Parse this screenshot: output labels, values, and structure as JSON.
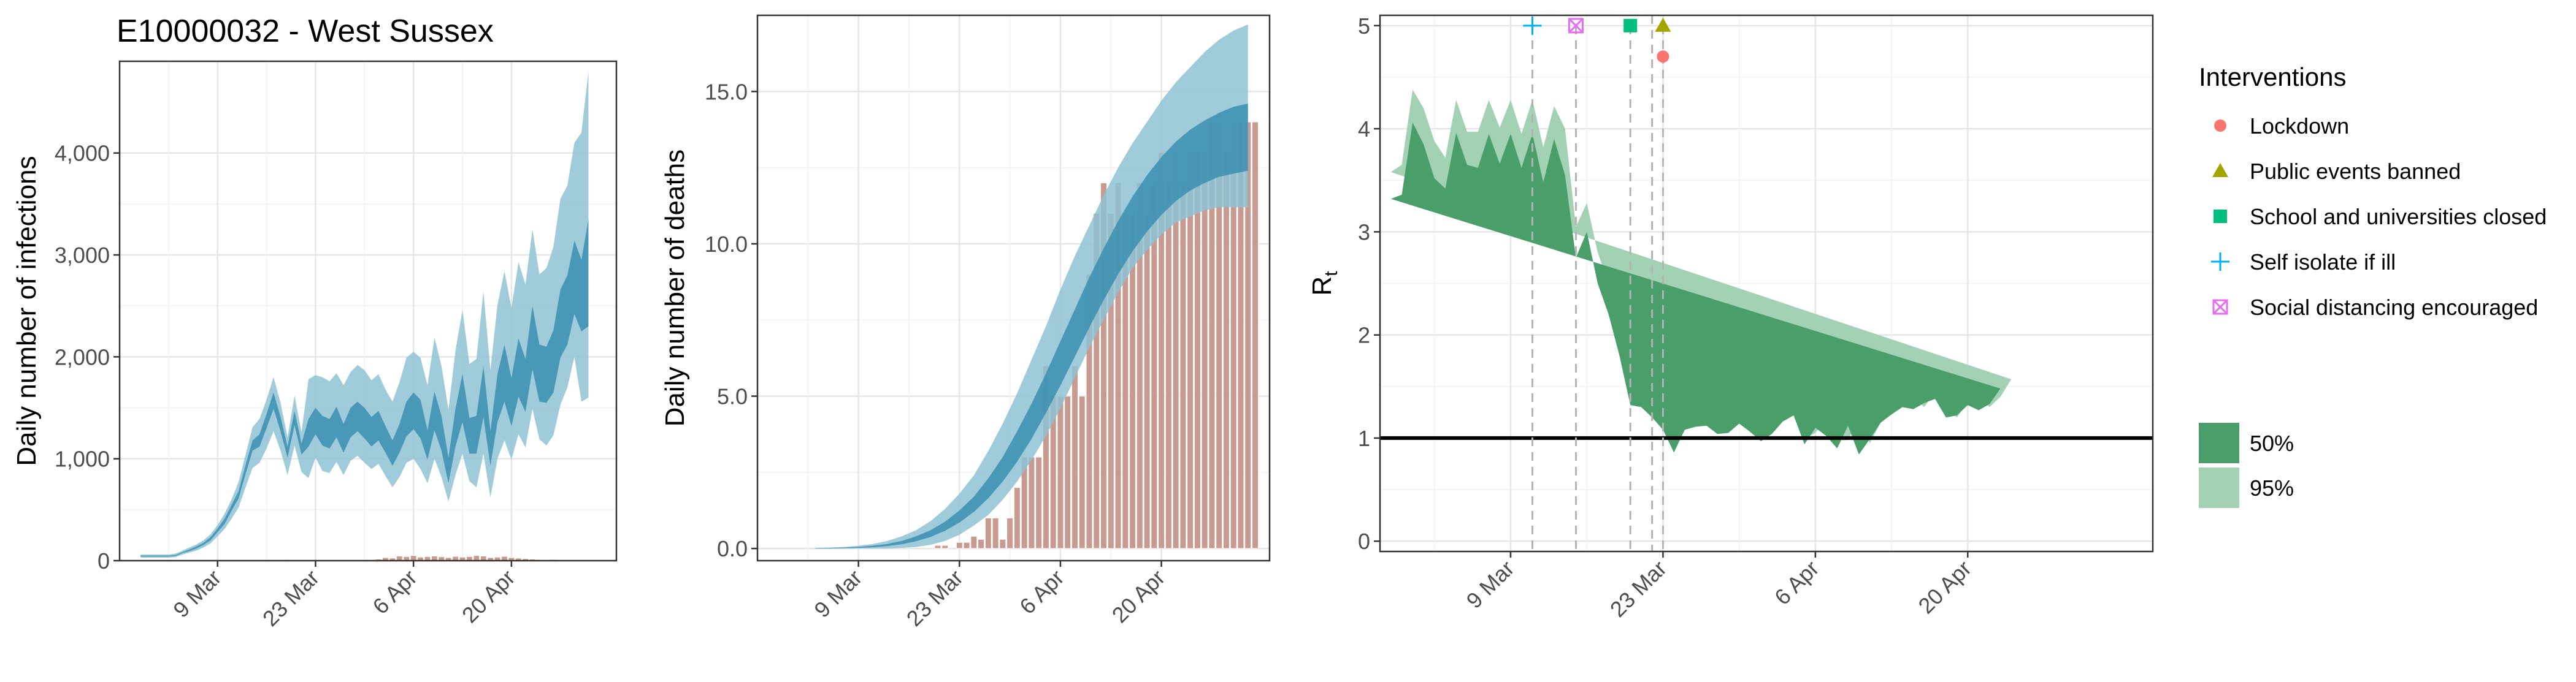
{
  "figure_title": "E10000032 - West Sussex",
  "colors": {
    "infections_95": "#8ec2d4",
    "infections_50": "#3b8fb0",
    "deaths_bar": "#c99a90",
    "rt_95": "#a3d1b3",
    "rt_50": "#4a9e6a",
    "lockdown": "#f8766d",
    "public_events": "#a3a500",
    "school": "#00bf7d",
    "self_isolate": "#00b0f6",
    "social_distancing": "#e76bf3"
  },
  "chart_data": [
    {
      "type": "area",
      "ylabel": "Daily number of infections",
      "x_ticks": [
        "9 Mar",
        "23 Mar",
        "6 Apr",
        "20 Apr"
      ],
      "x_tick_days": [
        9,
        23,
        37,
        51
      ],
      "xlim": [
        -5,
        66
      ],
      "ylim": [
        0,
        4900
      ],
      "y_ticks": [
        0,
        1000,
        2000,
        3000,
        4000
      ],
      "y_tick_labels": [
        "0",
        "1,000",
        "2,000",
        "3,000",
        "4,000"
      ],
      "grid": true,
      "days": [
        -2,
        -1,
        0,
        1,
        2,
        3,
        4,
        5,
        6,
        7,
        8,
        9,
        10,
        11,
        12,
        13,
        14,
        15,
        16,
        17,
        18,
        19,
        20,
        21,
        22,
        23,
        24,
        25,
        26,
        27,
        28,
        29,
        30,
        31,
        32,
        33,
        34,
        35,
        36,
        37,
        38,
        39,
        40,
        41,
        42,
        43,
        44,
        45,
        46,
        47,
        48,
        49,
        50,
        51,
        52,
        53,
        54,
        55,
        56,
        57,
        58,
        59,
        60,
        61,
        62
      ],
      "ci95_low": [
        30,
        30,
        30,
        30,
        30,
        35,
        60,
        80,
        100,
        130,
        170,
        240,
        310,
        410,
        520,
        720,
        910,
        960,
        1100,
        1270,
        1080,
        840,
        1130,
        870,
        810,
        1010,
        880,
        860,
        970,
        840,
        980,
        1030,
        960,
        900,
        950,
        830,
        720,
        820,
        960,
        1000,
        900,
        760,
        1000,
        820,
        580,
        840,
        1050,
        780,
        720,
        1050,
        620,
        1000,
        1180,
        990,
        1240,
        1110,
        1490,
        1190,
        1130,
        1230,
        1530,
        1700,
        2000,
        1560,
        1600
      ],
      "ci95_high": [
        60,
        60,
        60,
        60,
        60,
        70,
        100,
        130,
        160,
        200,
        260,
        350,
        460,
        600,
        770,
        1040,
        1310,
        1390,
        1580,
        1800,
        1550,
        1210,
        1620,
        1260,
        1780,
        1820,
        1800,
        1760,
        1840,
        1720,
        1850,
        1920,
        1870,
        1770,
        1830,
        1680,
        1560,
        1750,
        1990,
        2050,
        1990,
        1720,
        2190,
        1910,
        1480,
        2060,
        2460,
        1930,
        1980,
        2640,
        1870,
        2510,
        2840,
        2480,
        2930,
        2710,
        3250,
        2810,
        2870,
        3080,
        3550,
        3680,
        4100,
        4200,
        4800
      ],
      "ci50_low": [
        40,
        40,
        40,
        40,
        40,
        45,
        75,
        95,
        120,
        155,
        200,
        280,
        360,
        490,
        610,
        850,
        1080,
        1120,
        1300,
        1490,
        1270,
        1010,
        1330,
        1040,
        1120,
        1240,
        1130,
        1100,
        1210,
        1060,
        1210,
        1270,
        1200,
        1120,
        1180,
        1060,
        930,
        1060,
        1220,
        1290,
        1200,
        990,
        1280,
        1080,
        760,
        1120,
        1360,
        1050,
        1050,
        1410,
        930,
        1360,
        1560,
        1320,
        1610,
        1460,
        1880,
        1560,
        1550,
        1650,
        1990,
        2120,
        2420,
        2250,
        2300
      ],
      "ci50_high": [
        50,
        50,
        50,
        50,
        50,
        55,
        85,
        110,
        140,
        175,
        230,
        315,
        410,
        545,
        680,
        940,
        1180,
        1240,
        1440,
        1650,
        1410,
        1120,
        1470,
        1150,
        1390,
        1500,
        1420,
        1390,
        1510,
        1340,
        1500,
        1560,
        1500,
        1410,
        1470,
        1320,
        1180,
        1340,
        1560,
        1650,
        1580,
        1280,
        1660,
        1420,
        1010,
        1490,
        1830,
        1400,
        1420,
        1910,
        1270,
        1830,
        2120,
        1790,
        2180,
        1980,
        2500,
        2120,
        2100,
        2260,
        2660,
        2800,
        3140,
        2950,
        3350
      ],
      "bars_days": [
        19,
        24,
        27,
        31,
        32,
        33,
        34,
        35,
        36,
        37,
        38,
        39,
        40,
        41,
        42,
        43,
        44,
        45,
        46,
        47,
        48,
        49,
        50,
        51,
        52,
        53,
        54,
        55,
        56,
        57
      ],
      "bars_values": [
        10,
        5,
        8,
        10,
        15,
        30,
        25,
        45,
        40,
        50,
        35,
        40,
        45,
        38,
        30,
        42,
        35,
        40,
        50,
        45,
        30,
        35,
        42,
        30,
        25,
        20,
        15,
        10,
        8,
        12
      ]
    },
    {
      "type": "area",
      "ylabel": "Daily number of deaths",
      "x_ticks": [
        "9 Mar",
        "23 Mar",
        "6 Apr",
        "20 Apr"
      ],
      "x_tick_days": [
        9,
        23,
        37,
        51
      ],
      "xlim": [
        -5,
        66
      ],
      "ylim": [
        -0.4,
        17.5
      ],
      "y_ticks": [
        0,
        5,
        10,
        15
      ],
      "y_tick_labels": [
        "0.0",
        "5.0",
        "10.0",
        "15.0"
      ],
      "grid": true,
      "days": [
        3,
        5,
        7,
        9,
        11,
        13,
        15,
        17,
        19,
        21,
        23,
        25,
        27,
        29,
        31,
        33,
        35,
        37,
        39,
        41,
        43,
        45,
        47,
        49,
        51,
        53,
        55,
        57,
        59,
        61,
        63
      ],
      "ci95_low": [
        0,
        0,
        0,
        0,
        0,
        0,
        0.02,
        0.05,
        0.12,
        0.25,
        0.45,
        0.75,
        1.1,
        1.6,
        2.2,
        2.9,
        3.7,
        4.6,
        5.6,
        6.6,
        7.5,
        8.4,
        9.2,
        9.8,
        10.3,
        10.7,
        10.9,
        11.1,
        11.2,
        11.2,
        11.2
      ],
      "ci95_high": [
        0.02,
        0.03,
        0.05,
        0.09,
        0.15,
        0.25,
        0.4,
        0.6,
        0.9,
        1.3,
        1.8,
        2.4,
        3.2,
        4.1,
        5.1,
        6.2,
        7.3,
        8.5,
        9.6,
        10.6,
        11.6,
        12.5,
        13.3,
        14.0,
        14.7,
        15.3,
        15.8,
        16.3,
        16.7,
        17.0,
        17.2
      ],
      "ci50_low": [
        0,
        0,
        0.01,
        0.02,
        0.04,
        0.08,
        0.14,
        0.24,
        0.38,
        0.58,
        0.85,
        1.2,
        1.65,
        2.2,
        2.85,
        3.6,
        4.45,
        5.35,
        6.3,
        7.25,
        8.15,
        9.0,
        9.75,
        10.4,
        10.95,
        11.4,
        11.75,
        12.0,
        12.2,
        12.3,
        12.4
      ],
      "ci50_high": [
        0.01,
        0.02,
        0.03,
        0.05,
        0.09,
        0.15,
        0.25,
        0.4,
        0.6,
        0.88,
        1.25,
        1.7,
        2.3,
        3.0,
        3.85,
        4.75,
        5.75,
        6.8,
        7.85,
        8.9,
        9.85,
        10.75,
        11.55,
        12.25,
        12.85,
        13.35,
        13.75,
        14.05,
        14.3,
        14.5,
        14.6
      ],
      "bars_days": [
        20,
        21,
        23,
        24,
        25,
        26,
        27,
        28,
        29,
        30,
        31,
        32,
        33,
        34,
        35,
        36,
        37,
        38,
        39,
        40,
        41,
        42,
        43,
        44,
        45,
        46,
        47,
        48,
        49,
        50,
        51,
        52,
        53,
        54,
        55,
        56,
        57,
        58,
        59,
        60,
        61,
        62,
        63,
        64
      ],
      "bars_values": [
        0.1,
        0.1,
        0.2,
        0.2,
        0.4,
        0.3,
        1,
        1,
        0.3,
        1,
        2,
        3,
        3,
        3,
        6,
        5,
        5,
        5,
        6,
        5,
        9,
        11,
        12,
        11,
        12,
        11,
        11,
        12,
        11,
        12,
        13,
        12,
        13,
        12,
        13,
        13,
        13,
        14,
        14,
        13,
        14,
        14,
        14,
        14
      ]
    },
    {
      "type": "area",
      "ylabel": "R",
      "ylabel_sub": "t",
      "x_ticks": [
        "9 Mar",
        "23 Mar",
        "6 Apr",
        "20 Apr"
      ],
      "x_tick_days": [
        9,
        23,
        37,
        51
      ],
      "xlim": [
        -3,
        68
      ],
      "ylim": [
        -0.1,
        5.1
      ],
      "y_ticks": [
        0,
        1,
        2,
        3,
        4,
        5
      ],
      "y_tick_labels": [
        "0",
        "1",
        "2",
        "3",
        "4",
        "5"
      ],
      "reference_line": 1,
      "grid": true,
      "days": [
        -2,
        -1,
        0,
        1,
        2,
        3,
        4,
        5,
        6,
        7,
        8,
        9,
        10,
        11,
        12,
        13,
        14,
        15,
        16,
        17,
        18,
        19,
        20,
        21,
        22,
        23,
        24,
        25,
        26,
        27,
        28,
        29,
        30,
        31,
        32,
        33,
        34,
        35,
        36,
        37,
        38,
        39,
        40,
        41,
        42,
        43,
        44,
        45,
        46,
        47,
        48,
        49,
        50,
        51,
        52,
        53,
        54,
        55,
        56,
        57,
        58,
        59,
        60,
        61,
        62,
        63
      ],
      "ci95_low": [
        2.72,
        2.75,
        3.4,
        3.15,
        2.85,
        2.8,
        3.28,
        3.0,
        2.95,
        3.28,
        2.99,
        3.28,
        2.95,
        3.25,
        2.8,
        3.22,
        2.72,
        2.1,
        2.38,
        1.9,
        1.6,
        1.25,
        0.9,
        0.89,
        0.95,
        0.82,
        0.62,
        0.85,
        0.87,
        0.92,
        0.84,
        0.83,
        0.92,
        0.85,
        0.78,
        0.85,
        0.98,
        0.73,
        0.77,
        0.97,
        0.68,
        0.72,
        0.98,
        0.55,
        0.83,
        1.0,
        1.1,
        1.1,
        1.0,
        1.2,
        1.1,
        0.98,
        1.08,
        1.18,
        1.0,
        1.2,
        1.27
      ],
      "ci95_high": [
        3.58,
        3.65,
        4.38,
        4.2,
        3.88,
        3.72,
        4.28,
        3.97,
        3.97,
        4.28,
        4.01,
        4.28,
        3.95,
        4.28,
        3.82,
        4.22,
        4.0,
        3.05,
        3.28,
        2.8,
        2.5,
        2.05,
        1.42,
        1.41,
        1.3,
        1.18,
        0.96,
        1.18,
        1.2,
        1.2,
        1.12,
        1.15,
        1.22,
        1.14,
        1.05,
        1.11,
        1.22,
        1.37,
        0.99,
        1.05,
        1.18,
        0.98,
        0.98,
        1.2,
        0.95,
        1.15,
        1.23,
        1.33,
        1.4,
        1.3,
        1.45,
        1.3,
        1.2,
        1.35,
        1.4,
        1.3,
        1.4,
        1.57
      ],
      "ci50_low": [
        3.0,
        3.05,
        3.72,
        3.5,
        3.2,
        3.12,
        3.62,
        3.33,
        3.3,
        3.62,
        3.34,
        3.62,
        3.3,
        3.6,
        3.15,
        3.55,
        3.2,
        2.45,
        2.72,
        2.22,
        1.95,
        1.55,
        1.15,
        1.12,
        1.08,
        0.96,
        0.74,
        0.97,
        0.99,
        1.03,
        0.95,
        0.95,
        1.05,
        0.97,
        0.88,
        0.95,
        1.08,
        0.86,
        0.87,
        1.04,
        0.77,
        0.82,
        1.08,
        0.69,
        0.9,
        1.08,
        1.17,
        1.22,
        1.15,
        1.25,
        1.25,
        1.12,
        1.14,
        1.25,
        1.15,
        1.25,
        1.35
      ],
      "ci50_high": [
        3.32,
        3.36,
        4.06,
        3.85,
        3.52,
        3.42,
        3.96,
        3.65,
        3.62,
        3.95,
        3.66,
        3.95,
        3.62,
        3.95,
        3.48,
        3.9,
        3.55,
        2.75,
        3.0,
        2.5,
        2.2,
        1.8,
        1.32,
        1.3,
        1.2,
        1.08,
        0.86,
        1.08,
        1.11,
        1.12,
        1.04,
        1.05,
        1.14,
        1.06,
        0.97,
        1.04,
        1.16,
        1.22,
        0.94,
        1.1,
        1.02,
        0.9,
        1.12,
        0.84,
        0.99,
        1.15,
        1.23,
        1.3,
        1.28,
        1.34,
        1.38,
        1.2,
        1.22,
        1.32,
        1.27,
        1.33,
        1.48
      ],
      "rt_days_start": -2,
      "rt_days_step": 1.2,
      "interventions": [
        {
          "name": "Self isolate if ill",
          "day": 11,
          "marker": "plus",
          "y": 5.0,
          "color_key": "self_isolate"
        },
        {
          "name": "Social distancing encouraged",
          "day": 15,
          "marker": "box-x",
          "y": 5.0,
          "color_key": "social_distancing"
        },
        {
          "name": "School and universities closed",
          "day": 20,
          "marker": "square",
          "y": 5.0,
          "color_key": "school"
        },
        {
          "name": "Public events banned",
          "day": 23,
          "marker": "triangle",
          "y": 5.0,
          "color_key": "public_events"
        },
        {
          "name": "Lockdown",
          "day": 23,
          "marker": "circle",
          "y": 4.7,
          "color_key": "lockdown"
        }
      ],
      "extra_vline_day": 22
    }
  ],
  "legend": {
    "title": "Interventions",
    "items": [
      {
        "label": "Lockdown",
        "marker": "circle",
        "color_key": "lockdown"
      },
      {
        "label": "Public events banned",
        "marker": "triangle",
        "color_key": "public_events"
      },
      {
        "label": "School and universities closed",
        "marker": "square",
        "color_key": "school"
      },
      {
        "label": "Self isolate if ill",
        "marker": "plus",
        "color_key": "self_isolate"
      },
      {
        "label": "Social distancing encouraged",
        "marker": "box-x",
        "color_key": "social_distancing"
      }
    ],
    "band_items": [
      {
        "label": "50%",
        "color_key": "rt_50"
      },
      {
        "label": "95%",
        "color_key": "rt_95"
      }
    ]
  }
}
